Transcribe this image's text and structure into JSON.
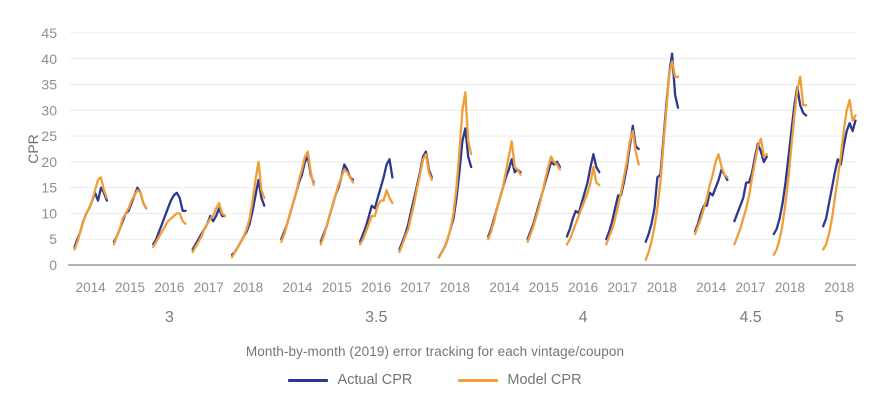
{
  "chart_data": {
    "type": "line",
    "title": "Month-by-month (2019) error tracking for each vintage/coupon",
    "ylabel": "CPR",
    "ylim": [
      0,
      45
    ],
    "ytick_step": 5,
    "grid": true,
    "legend_position": "bottom",
    "series_colors": {
      "actual": "#2b3990",
      "model": "#f19d38"
    },
    "axis_colors": {
      "gridline": "#ececec",
      "baseline": "#b3b3b3",
      "tick_text": "#8f8f8f",
      "group_text": "#7b7b7b"
    },
    "legend": [
      {
        "key": "actual",
        "label": "Actual CPR"
      },
      {
        "key": "model",
        "label": "Model CPR"
      }
    ],
    "groups": [
      {
        "coupon": "3",
        "vintages": [
          {
            "year": "2014",
            "actual": [
              3.5,
              5,
              6.5,
              8.5,
              10,
              11,
              12.5,
              14,
              12.5,
              15,
              14,
              12.5
            ],
            "model": [
              3,
              4.5,
              6.5,
              8.5,
              10,
              11,
              12.5,
              14.5,
              16.5,
              17,
              14.5,
              13
            ]
          },
          {
            "year": "2015",
            "actual": [
              4.5,
              5.5,
              7,
              8.5,
              10,
              10.5,
              12,
              13.5,
              15,
              14,
              12,
              11
            ],
            "model": [
              4,
              5.5,
              7,
              9,
              10,
              11,
              12.5,
              13.5,
              14.5,
              14,
              12,
              11
            ]
          },
          {
            "year": "2016",
            "actual": [
              4,
              5,
              6.5,
              8,
              9.5,
              11,
              12.5,
              13.5,
              14,
              13,
              10.5,
              10.5
            ],
            "model": [
              3.5,
              4.5,
              5.5,
              6.5,
              7.5,
              8.5,
              9,
              9.5,
              10,
              10,
              8.5,
              8
            ]
          },
          {
            "year": "2017",
            "actual": [
              3,
              4,
              5,
              6,
              7,
              8,
              9.5,
              8.5,
              9.5,
              11,
              9.5,
              9.5
            ],
            "model": [
              2.5,
              3.5,
              4.5,
              5.5,
              7,
              8,
              9,
              9.5,
              11,
              12,
              10,
              9.5
            ]
          },
          {
            "year": "2018",
            "actual": [
              2,
              2.5,
              3.5,
              4.5,
              5.5,
              6.5,
              8,
              10.5,
              13.5,
              16.5,
              13,
              11.5
            ],
            "model": [
              1.5,
              2.5,
              3.5,
              4.5,
              5.5,
              7,
              9,
              12.5,
              16.5,
              20,
              14.5,
              13
            ]
          }
        ]
      },
      {
        "coupon": "3.5",
        "vintages": [
          {
            "year": "2014",
            "actual": [
              5,
              6.5,
              8,
              10,
              12,
              14,
              16,
              17.5,
              20,
              21,
              17.5,
              16
            ],
            "model": [
              4.5,
              6,
              8,
              10,
              12,
              14,
              16.5,
              18.5,
              21,
              22,
              18,
              15.5
            ]
          },
          {
            "year": "2015",
            "actual": [
              4.5,
              6,
              7.5,
              9.5,
              11.5,
              13.5,
              15,
              17,
              19.5,
              18.5,
              17,
              16.5
            ],
            "model": [
              4,
              5.5,
              7.5,
              9.5,
              11.5,
              13.5,
              15.5,
              17,
              18.5,
              18,
              17,
              16
            ]
          },
          {
            "year": "2016",
            "actual": [
              4.5,
              6,
              7.5,
              9.5,
              11.5,
              11,
              13,
              15,
              17,
              19.5,
              20.5,
              17
            ],
            "model": [
              4,
              5,
              6.5,
              8,
              9.5,
              9.5,
              11.5,
              12.5,
              12.5,
              14.5,
              13,
              12
            ]
          },
          {
            "year": "2017",
            "actual": [
              3,
              4.5,
              6,
              8,
              10.5,
              13,
              15.5,
              18,
              21,
              22,
              18.5,
              17
            ],
            "model": [
              2.5,
              4,
              5.5,
              7,
              9.5,
              12,
              15,
              17.5,
              20.5,
              21.5,
              18,
              16.5
            ]
          },
          {
            "year": "2018",
            "actual": [
              1.5,
              2.5,
              3.5,
              5,
              7,
              9,
              13,
              18,
              24,
              26.5,
              21,
              19
            ],
            "model": [
              1.5,
              2.5,
              3.5,
              5,
              7,
              10,
              15,
              22,
              30,
              33.5,
              24,
              21.5
            ]
          }
        ]
      },
      {
        "coupon": "4",
        "vintages": [
          {
            "year": "2014",
            "actual": [
              5.5,
              7,
              9,
              11,
              13,
              15,
              17,
              18.5,
              20.5,
              18,
              18.5,
              18
            ],
            "model": [
              5,
              6.5,
              8.5,
              11,
              13,
              15,
              18,
              21,
              24,
              19,
              18.5,
              17.5
            ]
          },
          {
            "year": "2015",
            "actual": [
              5,
              6.5,
              8,
              10,
              12,
              14,
              16,
              18,
              20,
              19.5,
              20,
              19
            ],
            "model": [
              4.5,
              6,
              7.5,
              9.5,
              11.5,
              14,
              16.5,
              19,
              21,
              20,
              19.5,
              18.5
            ]
          },
          {
            "year": "2016",
            "actual": [
              5.5,
              7,
              9,
              10.5,
              10,
              12,
              14,
              16,
              19,
              21.5,
              19,
              18
            ],
            "model": [
              4,
              5,
              6.5,
              8,
              9.5,
              11,
              12.5,
              14,
              16,
              19,
              16,
              15.5
            ]
          },
          {
            "year": "2017",
            "actual": [
              5,
              6.5,
              8.5,
              11,
              13.5,
              13.5,
              16,
              19,
              23,
              27,
              23,
              22.5
            ],
            "model": [
              4,
              5.5,
              7,
              9,
              11.5,
              14,
              17,
              20,
              24,
              26,
              22,
              19.5
            ]
          },
          {
            "year": "2018",
            "actual": [
              4.5,
              6,
              8,
              11,
              17,
              17.5,
              24,
              31,
              37,
              41,
              33,
              30.5
            ],
            "model": [
              1,
              2.5,
              4.5,
              7.5,
              11,
              16,
              23,
              30,
              37,
              39.5,
              36.5,
              36.5
            ]
          }
        ]
      },
      {
        "coupon": "4.5",
        "vintages": [
          {
            "year": "2014",
            "actual": [
              6.5,
              8,
              10,
              11.5,
              11.5,
              14,
              13.5,
              15,
              16.5,
              18.5,
              17.5,
              16.5
            ],
            "model": [
              6,
              7.5,
              9,
              11,
              13,
              15.5,
              17.5,
              20,
              21.5,
              19,
              17.5,
              17
            ]
          },
          {
            "year": "2017",
            "actual": [
              8.5,
              10,
              11.5,
              13,
              16,
              16,
              18,
              21,
              23.5,
              22,
              20,
              21
            ],
            "model": [
              4,
              5.5,
              7,
              9,
              11,
              13.5,
              17,
              20,
              23,
              24.5,
              21,
              21.5
            ]
          },
          {
            "year": "2018",
            "actual": [
              6,
              7,
              9,
              12,
              16,
              21,
              26,
              31,
              34.5,
              31,
              29.5,
              29
            ],
            "model": [
              2,
              3,
              5,
              8,
              12,
              17,
              23,
              29,
              34,
              36.5,
              31,
              31
            ]
          }
        ]
      },
      {
        "coupon": "5",
        "vintages": [
          {
            "year": "2018",
            "actual": [
              7.5,
              9,
              12,
              15,
              18,
              20.5,
              19.5,
              23,
              26,
              27.5,
              26,
              28
            ],
            "model": [
              3,
              4,
              6,
              9,
              13,
              17,
              21,
              26,
              30,
              32,
              28,
              29
            ]
          }
        ]
      }
    ]
  }
}
